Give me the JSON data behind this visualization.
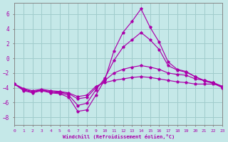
{
  "bg_color": "#c5e8e8",
  "grid_color": "#a0cccc",
  "line_color": "#aa00aa",
  "xlim": [
    0,
    23
  ],
  "ylim": [
    -9,
    7.5
  ],
  "yticks": [
    -8,
    -6,
    -4,
    -2,
    0,
    2,
    4,
    6
  ],
  "xticks": [
    0,
    1,
    2,
    3,
    4,
    5,
    6,
    7,
    8,
    9,
    10,
    11,
    12,
    13,
    14,
    15,
    16,
    17,
    18,
    19,
    20,
    21,
    22,
    23
  ],
  "xlabel": "Windchill (Refroidissement éolien,°C)",
  "lines": [
    {
      "y": [
        -3.5,
        -4.4,
        -4.7,
        -4.4,
        -4.7,
        -4.8,
        -5.3,
        -7.2,
        -7.0,
        -5.0,
        -2.9,
        1.0,
        3.5,
        5.0,
        6.7,
        4.2,
        2.2,
        -0.5,
        -1.5,
        -1.8,
        -2.5,
        -3.1,
        -3.4,
        -4.0
      ]
    },
    {
      "y": [
        -3.5,
        -4.3,
        -4.6,
        -4.3,
        -4.6,
        -4.7,
        -5.0,
        -6.4,
        -6.1,
        -4.3,
        -2.7,
        -0.3,
        1.5,
        2.5,
        3.5,
        2.5,
        1.2,
        -1.0,
        -1.6,
        -1.9,
        -2.5,
        -3.0,
        -3.3,
        -3.9
      ]
    },
    {
      "y": [
        -3.5,
        -4.2,
        -4.5,
        -4.3,
        -4.5,
        -4.6,
        -4.8,
        -5.5,
        -5.3,
        -4.0,
        -3.0,
        -2.0,
        -1.5,
        -1.2,
        -1.0,
        -1.2,
        -1.5,
        -2.0,
        -2.2,
        -2.3,
        -2.8,
        -3.0,
        -3.3,
        -3.8
      ]
    },
    {
      "y": [
        -3.5,
        -4.1,
        -4.4,
        -4.2,
        -4.4,
        -4.5,
        -4.7,
        -5.2,
        -5.0,
        -3.8,
        -3.3,
        -3.0,
        -2.8,
        -2.6,
        -2.5,
        -2.6,
        -2.8,
        -3.0,
        -3.2,
        -3.3,
        -3.5,
        -3.5,
        -3.5,
        -3.8
      ]
    }
  ]
}
